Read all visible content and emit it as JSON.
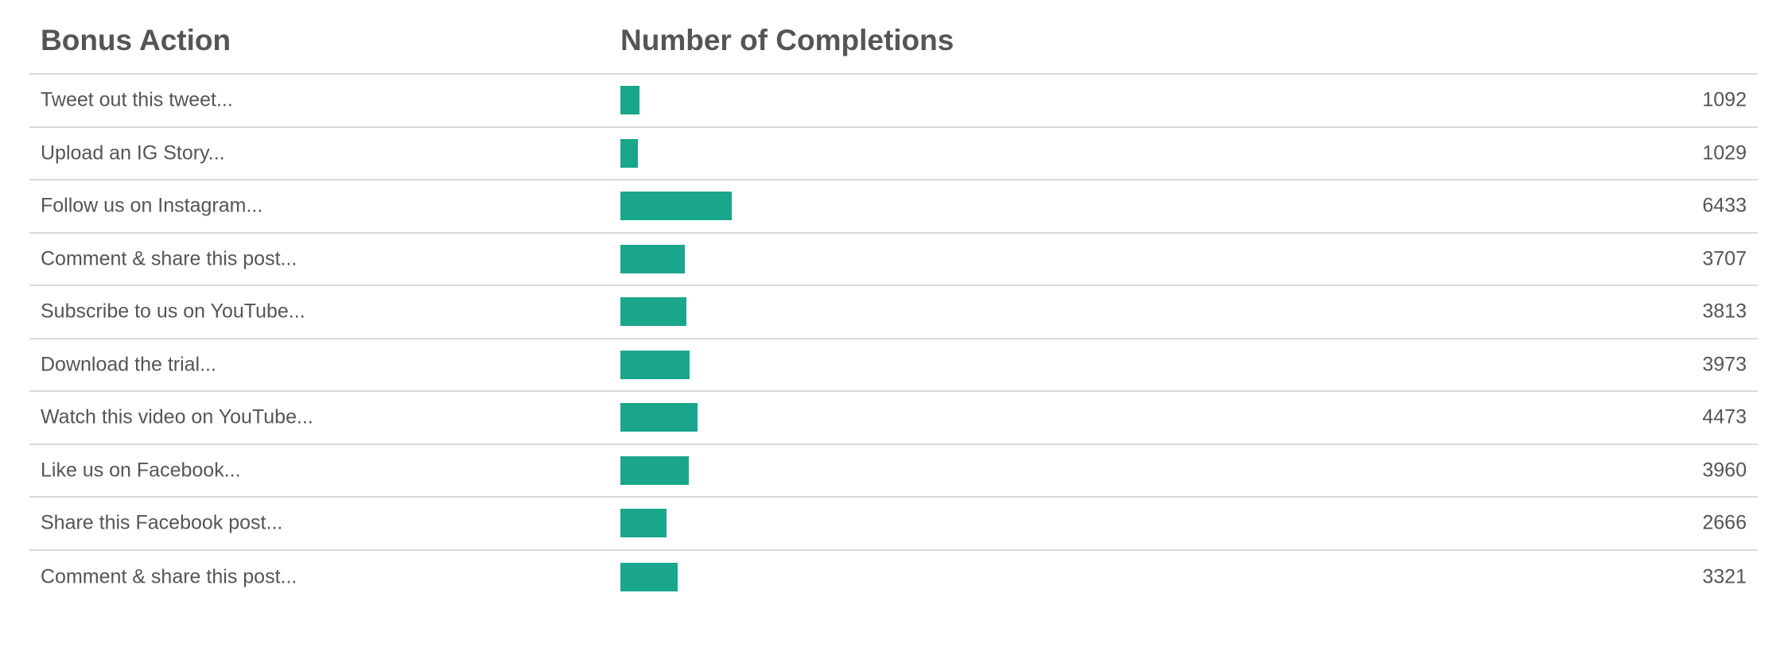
{
  "table": {
    "header_action": "Bonus Action",
    "header_count": "Number of Completions"
  },
  "chart_data": {
    "type": "bar",
    "orientation": "horizontal",
    "title": "",
    "xlabel": "Number of Completions",
    "ylabel": "Bonus Action",
    "categories": [
      "Tweet out this tweet...",
      "Upload an IG Story...",
      "Follow us on Instagram...",
      "Comment & share this post...",
      "Subscribe to us on YouTube...",
      "Download the trial...",
      "Watch this video on YouTube...",
      "Like us on Facebook...",
      "Share this Facebook post...",
      "Comment & share this post..."
    ],
    "values": [
      1092,
      1029,
      6433,
      3707,
      3813,
      3973,
      4473,
      3960,
      2666,
      3321
    ],
    "xlim": [
      0,
      65000
    ],
    "bar_color": "#1aa68a",
    "grid": false
  }
}
